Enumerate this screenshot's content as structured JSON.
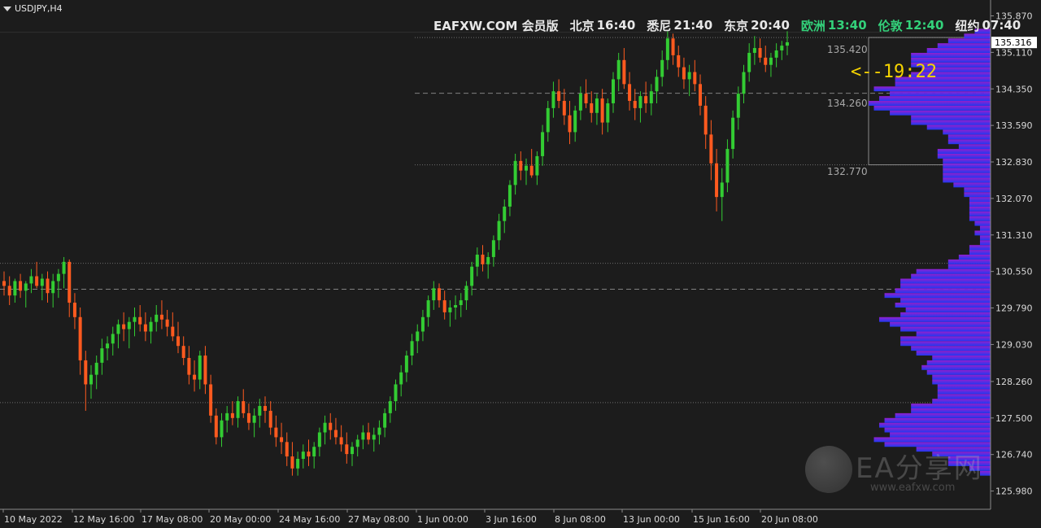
{
  "symbol": "USDJPY,H4",
  "clock": {
    "site": "EAFXW.COM 会员版",
    "cities": [
      {
        "name": "北京",
        "time": "16:40",
        "active": false
      },
      {
        "name": "悉尼",
        "time": "21:40",
        "active": false
      },
      {
        "name": "东京",
        "time": "20:40",
        "active": false
      },
      {
        "name": "欧洲",
        "time": "13:40",
        "active": true
      },
      {
        "name": "伦敦",
        "time": "12:40",
        "active": true
      },
      {
        "name": "纽约",
        "time": "07:40",
        "active": false
      }
    ]
  },
  "countdown": "<--19:22",
  "levels": {
    "upper": "135.420",
    "middle": "134.260",
    "lower": "132.770"
  },
  "current_price": "135.316",
  "watermark": {
    "title": "EA分享网",
    "url": "www.eafxw.com"
  },
  "colors": {
    "background": "#1c1c1c",
    "bull": "#33cc33",
    "bear": "#ff5a1f",
    "axis_text": "#d8d8d8",
    "current_price_bg": "#ffffff",
    "profile_start": "#1f3bff",
    "profile_end": "#9a1fd6"
  },
  "chart_data": {
    "type": "candlestick",
    "ylim": [
      125.6,
      136.2
    ],
    "y_ticks": [
      "135.870",
      "135.110",
      "134.350",
      "133.590",
      "132.830",
      "132.070",
      "131.310",
      "130.550",
      "129.790",
      "129.030",
      "128.260",
      "127.500",
      "126.740",
      "125.980"
    ],
    "x_ticks": [
      "10 May 2022",
      "12 May 16:00",
      "17 May 08:00",
      "20 May 00:00",
      "24 May 16:00",
      "27 May 08:00",
      "1 Jun 00:00",
      "3 Jun 16:00",
      "8 Jun 08:00",
      "13 Jun 00:00",
      "15 Jun 16:00",
      "20 Jun 08:00"
    ],
    "candles": [
      [
        130.35,
        130.55,
        130.05,
        130.25
      ],
      [
        130.25,
        130.45,
        129.85,
        130.05
      ],
      [
        130.05,
        130.4,
        129.9,
        130.35
      ],
      [
        130.35,
        130.5,
        130.0,
        130.15
      ],
      [
        130.15,
        130.35,
        129.8,
        130.3
      ],
      [
        130.3,
        130.6,
        130.1,
        130.45
      ],
      [
        130.45,
        130.75,
        130.2,
        130.25
      ],
      [
        130.25,
        130.5,
        129.95,
        130.4
      ],
      [
        130.4,
        130.55,
        129.9,
        130.1
      ],
      [
        130.1,
        130.5,
        129.8,
        130.35
      ],
      [
        130.35,
        130.6,
        130.0,
        130.5
      ],
      [
        130.5,
        130.85,
        130.2,
        130.75
      ],
      [
        130.75,
        130.8,
        129.6,
        129.9
      ],
      [
        129.9,
        130.1,
        129.35,
        129.6
      ],
      [
        129.6,
        129.8,
        128.4,
        128.7
      ],
      [
        128.7,
        128.9,
        127.65,
        128.2
      ],
      [
        128.2,
        128.6,
        127.9,
        128.4
      ],
      [
        128.4,
        128.8,
        128.1,
        128.65
      ],
      [
        128.65,
        129.15,
        128.4,
        128.95
      ],
      [
        128.95,
        129.2,
        128.7,
        129.05
      ],
      [
        129.05,
        129.4,
        128.8,
        129.25
      ],
      [
        129.25,
        129.55,
        128.95,
        129.45
      ],
      [
        129.45,
        129.7,
        129.1,
        129.35
      ],
      [
        129.35,
        129.6,
        128.95,
        129.5
      ],
      [
        129.5,
        129.8,
        129.2,
        129.6
      ],
      [
        129.6,
        129.85,
        129.3,
        129.45
      ],
      [
        129.45,
        129.7,
        129.1,
        129.3
      ],
      [
        129.3,
        129.6,
        129.05,
        129.5
      ],
      [
        129.5,
        129.85,
        129.3,
        129.65
      ],
      [
        129.65,
        129.95,
        129.35,
        129.55
      ],
      [
        129.55,
        129.75,
        129.2,
        129.4
      ],
      [
        129.4,
        129.7,
        129.1,
        129.2
      ],
      [
        129.2,
        129.5,
        128.85,
        129.0
      ],
      [
        129.0,
        129.2,
        128.6,
        128.75
      ],
      [
        128.75,
        129.0,
        128.2,
        128.4
      ],
      [
        128.4,
        128.7,
        128.05,
        128.3
      ],
      [
        128.3,
        128.9,
        128.1,
        128.8
      ],
      [
        128.8,
        129.0,
        128.0,
        128.2
      ],
      [
        128.2,
        128.4,
        127.4,
        127.55
      ],
      [
        127.55,
        127.7,
        126.95,
        127.1
      ],
      [
        127.1,
        127.6,
        126.9,
        127.45
      ],
      [
        127.45,
        127.75,
        127.2,
        127.6
      ],
      [
        127.6,
        127.85,
        127.35,
        127.5
      ],
      [
        127.5,
        127.95,
        127.3,
        127.85
      ],
      [
        127.85,
        128.1,
        127.5,
        127.6
      ],
      [
        127.6,
        127.8,
        127.25,
        127.4
      ],
      [
        127.4,
        127.7,
        127.1,
        127.55
      ],
      [
        127.55,
        127.9,
        127.3,
        127.75
      ],
      [
        127.75,
        127.95,
        127.4,
        127.65
      ],
      [
        127.65,
        127.85,
        127.15,
        127.3
      ],
      [
        127.3,
        127.55,
        126.9,
        127.1
      ],
      [
        127.1,
        127.4,
        126.75,
        127.0
      ],
      [
        127.0,
        127.2,
        126.5,
        126.7
      ],
      [
        126.7,
        127.0,
        126.3,
        126.45
      ],
      [
        126.45,
        126.8,
        126.3,
        126.65
      ],
      [
        126.65,
        126.95,
        126.45,
        126.8
      ],
      [
        126.8,
        127.05,
        126.5,
        126.7
      ],
      [
        126.7,
        127.0,
        126.45,
        126.9
      ],
      [
        126.9,
        127.3,
        126.7,
        127.2
      ],
      [
        127.2,
        127.55,
        126.95,
        127.4
      ],
      [
        127.4,
        127.6,
        127.05,
        127.25
      ],
      [
        127.25,
        127.5,
        126.95,
        127.1
      ],
      [
        127.1,
        127.35,
        126.8,
        126.95
      ],
      [
        126.95,
        127.2,
        126.55,
        126.75
      ],
      [
        126.75,
        127.0,
        126.5,
        126.9
      ],
      [
        126.9,
        127.15,
        126.7,
        127.05
      ],
      [
        127.05,
        127.35,
        126.85,
        127.2
      ],
      [
        127.2,
        127.4,
        126.95,
        127.05
      ],
      [
        127.05,
        127.3,
        126.8,
        127.15
      ],
      [
        127.15,
        127.45,
        126.95,
        127.3
      ],
      [
        127.3,
        127.7,
        127.1,
        127.6
      ],
      [
        127.6,
        127.95,
        127.4,
        127.85
      ],
      [
        127.85,
        128.3,
        127.65,
        128.2
      ],
      [
        128.2,
        128.6,
        127.95,
        128.45
      ],
      [
        128.45,
        128.9,
        128.25,
        128.8
      ],
      [
        128.8,
        129.25,
        128.6,
        129.1
      ],
      [
        129.1,
        129.45,
        128.85,
        129.3
      ],
      [
        129.3,
        129.75,
        129.1,
        129.6
      ],
      [
        129.6,
        130.05,
        129.4,
        129.95
      ],
      [
        129.95,
        130.35,
        129.75,
        130.2
      ],
      [
        130.2,
        130.3,
        129.8,
        129.95
      ],
      [
        129.95,
        130.15,
        129.55,
        129.7
      ],
      [
        129.7,
        129.95,
        129.4,
        129.8
      ],
      [
        129.8,
        130.05,
        129.55,
        129.85
      ],
      [
        129.85,
        130.1,
        129.6,
        129.95
      ],
      [
        129.95,
        130.35,
        129.75,
        130.25
      ],
      [
        130.25,
        130.75,
        130.05,
        130.65
      ],
      [
        130.65,
        131.05,
        130.45,
        130.9
      ],
      [
        130.9,
        131.1,
        130.55,
        130.7
      ],
      [
        130.7,
        130.95,
        130.4,
        130.85
      ],
      [
        130.85,
        131.3,
        130.65,
        131.2
      ],
      [
        131.2,
        131.75,
        131.0,
        131.6
      ],
      [
        131.6,
        132.05,
        131.35,
        131.9
      ],
      [
        131.9,
        132.45,
        131.7,
        132.35
      ],
      [
        132.35,
        133.0,
        132.15,
        132.85
      ],
      [
        132.85,
        133.05,
        132.45,
        132.65
      ],
      [
        132.65,
        132.9,
        132.35,
        132.75
      ],
      [
        132.75,
        133.1,
        132.5,
        132.55
      ],
      [
        132.55,
        133.05,
        132.35,
        132.95
      ],
      [
        132.95,
        133.6,
        132.75,
        133.45
      ],
      [
        133.45,
        134.1,
        133.25,
        133.95
      ],
      [
        133.95,
        134.5,
        133.75,
        134.3
      ],
      [
        134.3,
        134.55,
        133.95,
        134.1
      ],
      [
        134.1,
        134.35,
        133.6,
        133.8
      ],
      [
        133.8,
        134.1,
        133.2,
        133.45
      ],
      [
        133.45,
        134.0,
        133.25,
        133.9
      ],
      [
        133.9,
        134.4,
        133.7,
        134.25
      ],
      [
        134.25,
        134.55,
        133.95,
        134.05
      ],
      [
        134.05,
        134.3,
        133.65,
        133.85
      ],
      [
        133.85,
        134.25,
        133.6,
        134.15
      ],
      [
        134.15,
        134.35,
        133.4,
        133.65
      ],
      [
        133.65,
        134.15,
        133.45,
        134.05
      ],
      [
        134.05,
        134.7,
        133.85,
        134.55
      ],
      [
        134.55,
        135.1,
        134.3,
        134.95
      ],
      [
        134.95,
        135.2,
        134.35,
        134.45
      ],
      [
        134.45,
        134.7,
        133.9,
        134.1
      ],
      [
        134.1,
        134.35,
        133.7,
        133.95
      ],
      [
        133.95,
        134.3,
        133.65,
        134.2
      ],
      [
        134.2,
        134.5,
        133.85,
        134.05
      ],
      [
        134.05,
        134.45,
        133.8,
        134.3
      ],
      [
        134.3,
        134.75,
        134.05,
        134.6
      ],
      [
        134.6,
        135.15,
        134.4,
        134.95
      ],
      [
        134.95,
        135.55,
        134.75,
        135.4
      ],
      [
        135.4,
        135.5,
        134.85,
        135.05
      ],
      [
        135.05,
        135.25,
        134.6,
        134.8
      ],
      [
        134.8,
        135.0,
        134.35,
        134.55
      ],
      [
        134.55,
        134.85,
        134.2,
        134.7
      ],
      [
        134.7,
        134.95,
        134.3,
        134.45
      ],
      [
        134.45,
        134.65,
        133.8,
        134.0
      ],
      [
        134.0,
        134.2,
        133.1,
        133.4
      ],
      [
        133.4,
        133.7,
        132.45,
        132.8
      ],
      [
        132.8,
        133.1,
        131.8,
        132.1
      ],
      [
        132.1,
        132.7,
        131.6,
        132.4
      ],
      [
        132.4,
        133.3,
        132.2,
        133.1
      ],
      [
        133.1,
        133.9,
        132.9,
        133.75
      ],
      [
        133.75,
        134.4,
        133.5,
        134.25
      ],
      [
        134.25,
        134.85,
        134.05,
        134.7
      ],
      [
        134.7,
        135.3,
        134.5,
        135.1
      ],
      [
        135.1,
        135.45,
        134.85,
        135.2
      ],
      [
        135.2,
        135.4,
        134.9,
        135.0
      ],
      [
        135.0,
        135.25,
        134.7,
        134.85
      ],
      [
        134.85,
        135.1,
        134.6,
        135.0
      ],
      [
        135.0,
        135.3,
        134.8,
        135.15
      ],
      [
        135.15,
        135.35,
        134.95,
        135.25
      ],
      [
        135.25,
        135.55,
        135.05,
        135.32
      ]
    ]
  }
}
